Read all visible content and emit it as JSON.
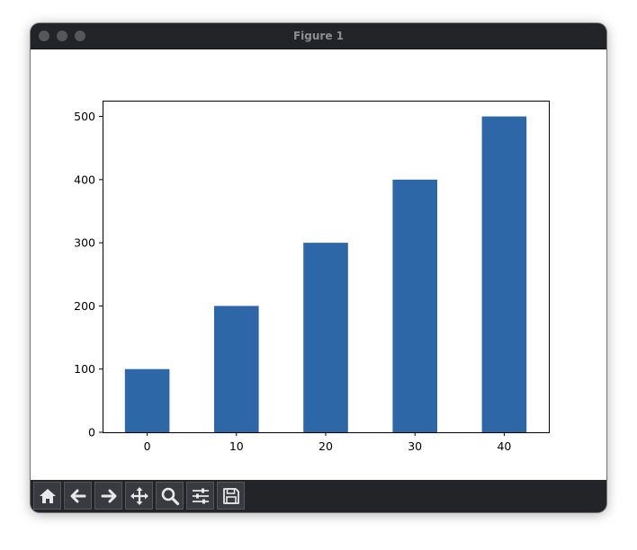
{
  "window": {
    "title": "Figure 1"
  },
  "toolbar": {
    "buttons": [
      {
        "name": "home",
        "icon": "home-icon"
      },
      {
        "name": "back",
        "icon": "arrow-left-icon"
      },
      {
        "name": "forward",
        "icon": "arrow-right-icon"
      },
      {
        "name": "pan",
        "icon": "move-icon"
      },
      {
        "name": "zoom",
        "icon": "magnifier-icon"
      },
      {
        "name": "configure-subplots",
        "icon": "sliders-icon"
      },
      {
        "name": "save",
        "icon": "floppy-disk-icon"
      }
    ]
  },
  "chart_data": {
    "type": "bar",
    "categories": [
      "0",
      "10",
      "20",
      "30",
      "40"
    ],
    "values": [
      100,
      200,
      300,
      400,
      500
    ],
    "ylim": [
      0,
      525
    ],
    "yticks": [
      "0",
      "100",
      "200",
      "300",
      "400",
      "500"
    ],
    "bar_color": "#2e67a8",
    "grid": false,
    "title": "",
    "xlabel": "",
    "ylabel": ""
  }
}
